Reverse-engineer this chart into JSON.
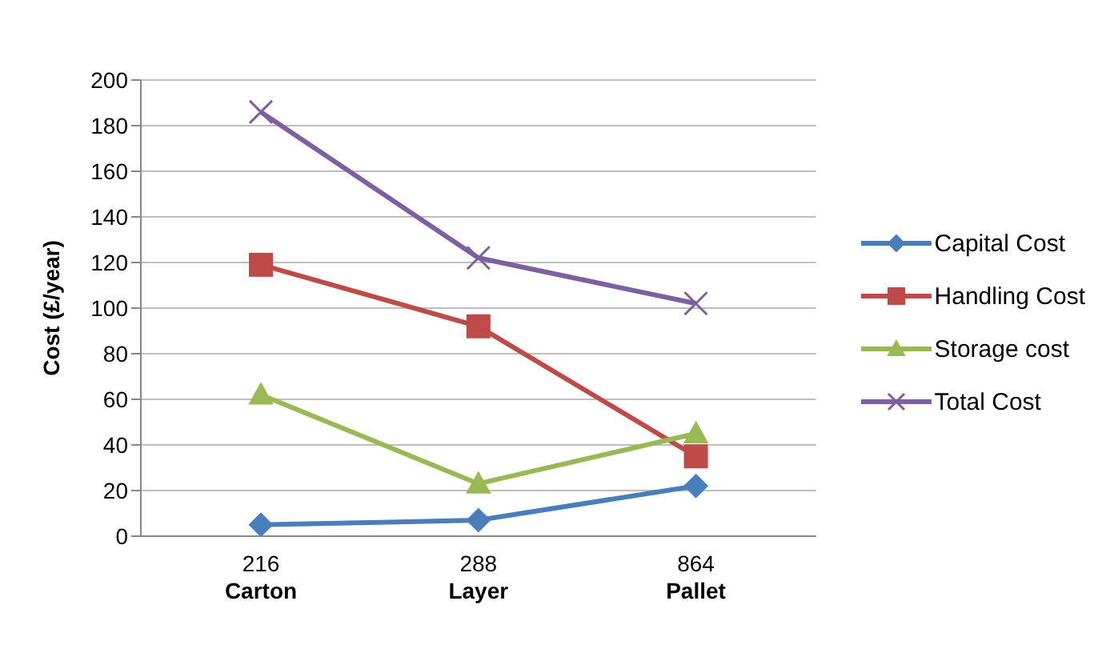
{
  "chart_data": {
    "type": "line",
    "ylabel": "Cost (£/year)",
    "categories": [
      "216\nCarton",
      "288\nLayer",
      "864\nPallet"
    ],
    "series": [
      {
        "name": "Capital Cost",
        "color": "#4a7ebb",
        "marker": "diamond",
        "values": [
          5,
          7,
          22
        ]
      },
      {
        "name": "Handling Cost",
        "color": "#be4b48",
        "marker": "square",
        "values": [
          119,
          92,
          35
        ]
      },
      {
        "name": "Storage cost",
        "color": "#98b954",
        "marker": "triangle",
        "values": [
          62,
          23,
          45
        ]
      },
      {
        "name": "Total Cost",
        "color": "#7d60a0",
        "marker": "cross",
        "values": [
          186,
          122,
          102
        ]
      }
    ],
    "ylim": [
      0,
      200
    ],
    "yticks": [
      0,
      20,
      40,
      60,
      80,
      100,
      120,
      140,
      160,
      180,
      200
    ],
    "grid": "y",
    "legend": "right"
  }
}
